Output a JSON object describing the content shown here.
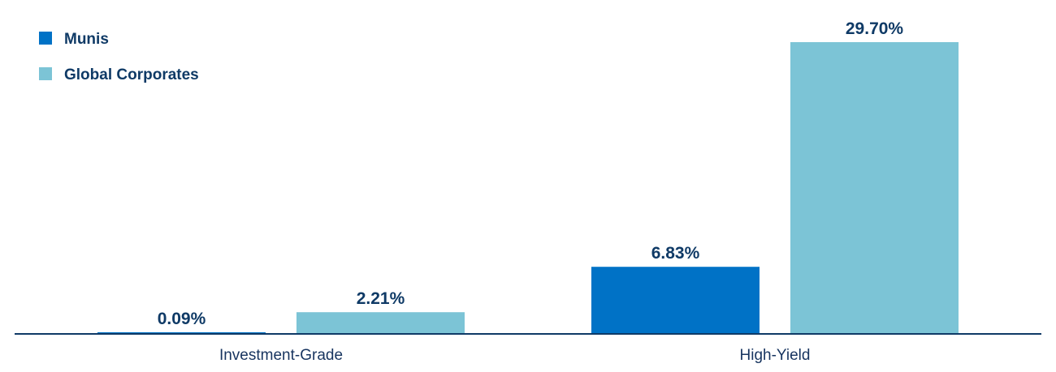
{
  "chart_data": {
    "type": "bar",
    "categories": [
      "Investment-Grade",
      "High-Yield"
    ],
    "series": [
      {
        "name": "Munis",
        "values": [
          0.09,
          6.83
        ],
        "labels": [
          "0.09%",
          "6.83%"
        ],
        "color": "#0072c6"
      },
      {
        "name": "Global Corporates",
        "values": [
          2.21,
          29.7
        ],
        "labels": [
          "2.21%",
          "29.70%"
        ],
        "color": "#7cc4d6"
      }
    ],
    "title": "",
    "xlabel": "",
    "ylabel": "",
    "ylim": [
      0,
      29.7
    ],
    "grid": false,
    "legend": "top-left",
    "axis_color": "#0f3a66",
    "text_color": "#0f3a66"
  }
}
